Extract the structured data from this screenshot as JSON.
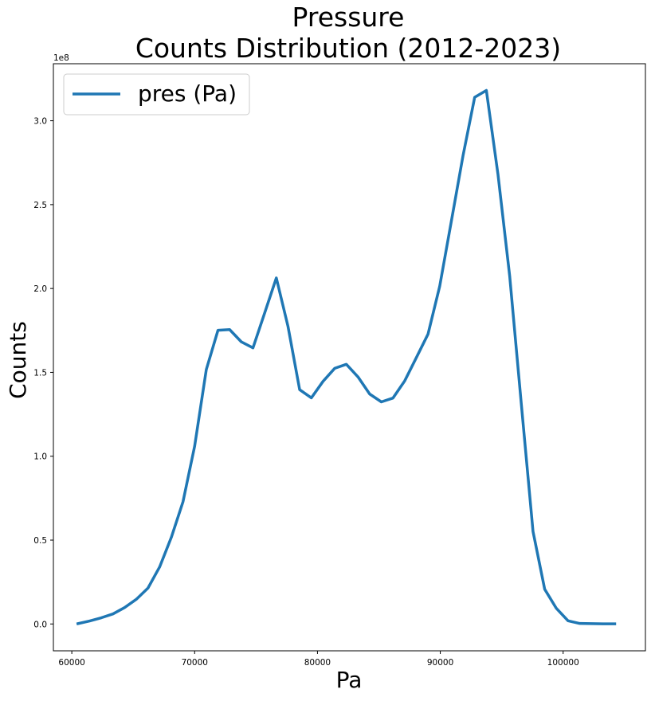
{
  "chart_data": {
    "type": "line",
    "title": "Pressure",
    "subtitle": "Counts Distribution (2012-2023)",
    "xlabel": "Pa",
    "ylabel": "Counts",
    "y_offset_label": "1e8",
    "xlim": [
      58500,
      106700
    ],
    "ylim": [
      -16000000,
      334000000
    ],
    "x_ticks": [
      60000,
      70000,
      80000,
      90000,
      100000
    ],
    "x_tick_labels": [
      "60000",
      "70000",
      "80000",
      "90000",
      "100000"
    ],
    "y_ticks": [
      0,
      50000000,
      100000000,
      150000000,
      200000000,
      250000000,
      300000000
    ],
    "y_tick_labels": [
      "0.0",
      "0.5",
      "1.0",
      "1.5",
      "2.0",
      "2.5",
      "3.0"
    ],
    "grid": false,
    "legend_position": "upper-left",
    "series": [
      {
        "name": "pres (Pa)",
        "color": "#1f77b4",
        "x": [
          60500,
          61450,
          62400,
          63350,
          64300,
          65250,
          66200,
          67150,
          68100,
          69050,
          70000,
          70950,
          71900,
          72850,
          73800,
          74750,
          75700,
          76650,
          77600,
          78550,
          79500,
          80450,
          81400,
          82350,
          83300,
          84250,
          85200,
          86150,
          87100,
          88050,
          89000,
          89950,
          90900,
          91850,
          92800,
          93750,
          94700,
          95650,
          96600,
          97550,
          98500,
          99450,
          100400,
          101350,
          102300,
          103250,
          104200
        ],
        "y": [
          200000,
          1800000,
          3700000,
          6000000,
          9800000,
          14700000,
          21400000,
          34000000,
          51600000,
          72800000,
          106000000,
          151700000,
          175100000,
          175500000,
          168200000,
          164600000,
          185400000,
          206300000,
          177400000,
          139700000,
          134800000,
          144600000,
          152400000,
          154800000,
          147300000,
          137100000,
          132400000,
          134700000,
          144900000,
          158800000,
          172800000,
          201300000,
          240100000,
          279200000,
          314000000,
          318100000,
          267800000,
          207400000,
          130800000,
          55100000,
          20700000,
          9300000,
          1900000,
          300000,
          200000,
          100000,
          100000
        ]
      }
    ]
  }
}
